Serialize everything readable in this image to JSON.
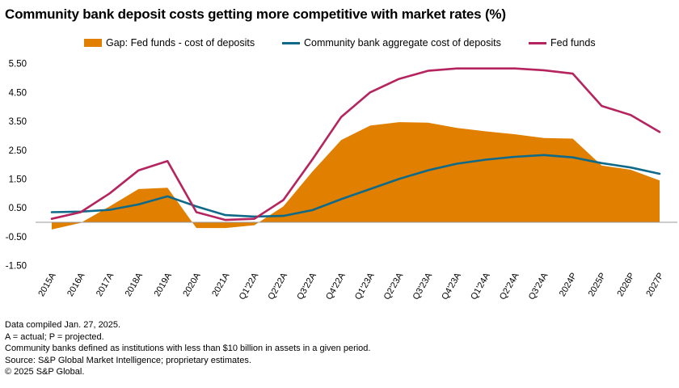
{
  "chart_data": {
    "type": "line",
    "title": "Community bank deposit costs getting more competitive with market rates (%)",
    "categories": [
      "2015A",
      "2016A",
      "2017A",
      "2018A",
      "2019A",
      "2020A",
      "2021A",
      "Q1'22A",
      "Q2'22A",
      "Q3'22A",
      "Q4'22A",
      "Q1'23A",
      "Q2'23A",
      "Q3'23A",
      "Q4'23A",
      "Q1'24A",
      "Q2'24A",
      "Q3'24A",
      "2024P",
      "2025P",
      "2026P",
      "2027P"
    ],
    "yticks": [
      5.5,
      4.5,
      3.5,
      2.5,
      1.5,
      0.5,
      -0.5,
      -1.5
    ],
    "ylim": [
      -1.5,
      5.5
    ],
    "legend_position": "top",
    "grid": false,
    "series": [
      {
        "name": "Gap: Fed funds - cost of deposits",
        "kind": "area",
        "color": "#E07F00",
        "values": [
          -0.25,
          -0.02,
          0.55,
          1.15,
          1.2,
          -0.2,
          -0.2,
          -0.1,
          0.55,
          1.75,
          2.85,
          3.35,
          3.47,
          3.45,
          3.27,
          3.15,
          3.05,
          2.92,
          2.9,
          1.97,
          1.82,
          1.45
        ]
      },
      {
        "name": "Community bank aggregate cost of deposits",
        "kind": "line",
        "color": "#0F6A8A",
        "values": [
          0.35,
          0.37,
          0.43,
          0.62,
          0.9,
          0.55,
          0.25,
          0.2,
          0.22,
          0.42,
          0.8,
          1.15,
          1.5,
          1.8,
          2.03,
          2.17,
          2.27,
          2.33,
          2.25,
          2.05,
          1.9,
          1.68
        ]
      },
      {
        "name": "Fed funds",
        "kind": "line",
        "color": "#B5245E",
        "values": [
          0.12,
          0.35,
          1.0,
          1.8,
          2.12,
          0.35,
          0.08,
          0.12,
          0.77,
          2.17,
          3.65,
          4.5,
          4.97,
          5.25,
          5.33,
          5.33,
          5.33,
          5.27,
          5.15,
          4.03,
          3.72,
          3.13
        ]
      }
    ]
  },
  "footnotes": [
    "Data compiled Jan. 27, 2025.",
    "A = actual; P = projected.",
    "Community banks defined as institutions with less than $10 billion in assets in a given period.",
    "Source: S&P Global Market Intelligence; proprietary estimates.",
    "© 2025 S&P Global."
  ]
}
